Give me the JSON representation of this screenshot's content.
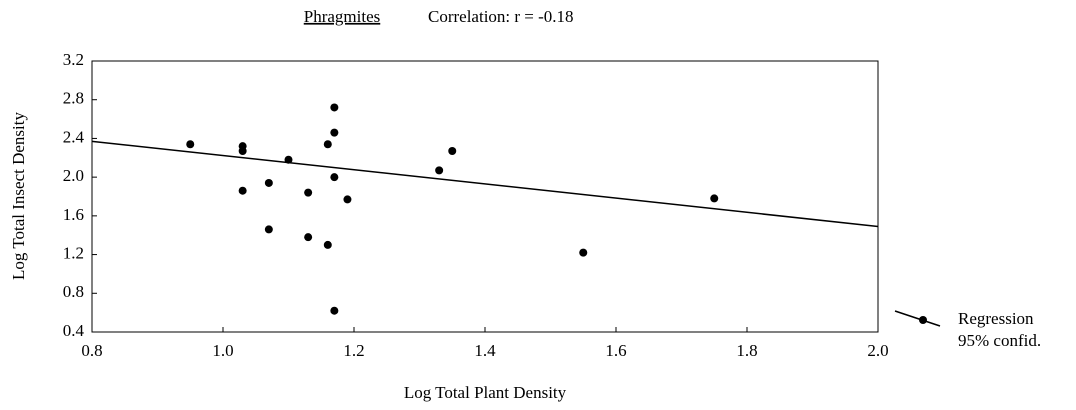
{
  "chart_data": {
    "type": "scatter",
    "title": "Phragmites",
    "subtitle": "Correlation: r = -0.18",
    "x_label": "Log Total Plant Density",
    "y_label": "Log Total Insect Density",
    "xlim": [
      0.8,
      2.0
    ],
    "xticks": [
      0.8,
      {
        "value": 1,
        "label": "1.0"
      },
      1.2,
      1.4,
      1.6,
      1.8,
      {
        "value": 2,
        "label": "2.0"
      }
    ],
    "ylim": [
      0.4,
      3.2
    ],
    "yticks": [
      0.4,
      0.8,
      1.2,
      1.6,
      {
        "value": 2,
        "label": "2.0"
      },
      2.4,
      2.8,
      3.2
    ],
    "color": "#000000",
    "points": {
      "x": [
        0.95,
        1.03,
        1.03,
        1.03,
        1.07,
        1.07,
        1.1,
        1.13,
        1.13,
        1.16,
        1.17,
        1.16,
        1.19,
        1.17,
        1.17,
        1.17,
        1.33,
        1.35,
        1.55,
        1.75
      ],
      "values": [
        2.34,
        2.32,
        2.27,
        1.86,
        1.94,
        1.46,
        2.18,
        1.84,
        1.38,
        2.34,
        2.0,
        1.3,
        1.77,
        2.72,
        2.46,
        0.62,
        2.07,
        2.27,
        1.22,
        1.78
      ]
    },
    "regression": {
      "name": "Regression",
      "x": [
        0.8,
        2.0
      ],
      "values": [
        2.37,
        1.49
      ]
    },
    "legend_note": "95% confid."
  }
}
